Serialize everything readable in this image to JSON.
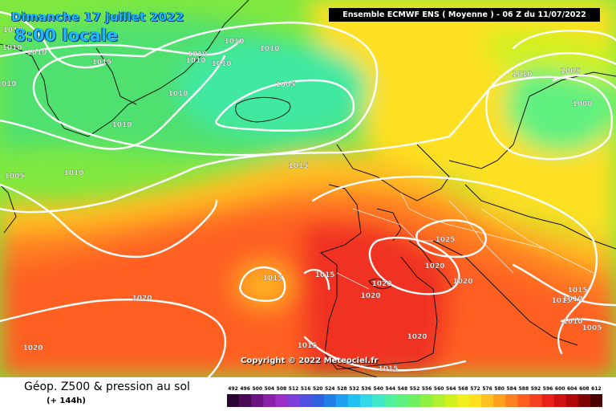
{
  "header": {
    "date": "Dimanche 17 juillet 2022",
    "time": "8:00 locale",
    "run": "Ensemble ECMWF ENS  ( Moyenne )  -  06 Z du 11/07/2022"
  },
  "copyright": "Copyright © 2022 Meteociel.fr",
  "footer": {
    "parameter": "Géop. Z500 & pression au sol",
    "lead_time": "(+ 144h)"
  },
  "legend": {
    "values": [
      "492",
      "496",
      "500",
      "504",
      "508",
      "512",
      "516",
      "520",
      "524",
      "528",
      "532",
      "536",
      "540",
      "544",
      "548",
      "552",
      "556",
      "560",
      "564",
      "568",
      "572",
      "576",
      "580",
      "584",
      "588",
      "592",
      "596",
      "600",
      "604",
      "608",
      "612"
    ],
    "colors": [
      "#2a0633",
      "#4a0a55",
      "#6b1480",
      "#8a1fa8",
      "#9a30c8",
      "#7a40d8",
      "#5050e0",
      "#3060e0",
      "#2080e8",
      "#20a0f0",
      "#20c0f0",
      "#30d8e8",
      "#40e8c8",
      "#50f0a0",
      "#60f080",
      "#70f060",
      "#90f040",
      "#b0f030",
      "#d0f020",
      "#f0f020",
      "#ffe020",
      "#ffc020",
      "#ffa020",
      "#ff8020",
      "#ff6020",
      "#f54020",
      "#e82018",
      "#d01010",
      "#b00808",
      "#800404",
      "#4a0000"
    ]
  },
  "isobars": [
    "1010",
    "1010",
    "1010",
    "1010",
    "1015",
    "1010",
    "1010",
    "1010",
    "1010",
    "1010",
    "1005",
    "1010",
    "1010",
    "1000",
    "1010",
    "1005",
    "1005",
    "1010",
    "1015",
    "1015",
    "1025",
    "1020",
    "1015",
    "1015",
    "1020",
    "1020",
    "1020",
    "1020",
    "1015",
    "1010",
    "1005",
    "1010",
    "1015",
    "1015",
    "1020",
    "1020"
  ]
}
